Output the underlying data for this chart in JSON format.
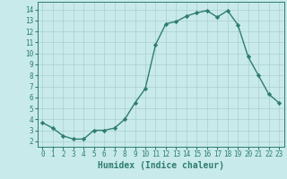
{
  "x": [
    0,
    1,
    2,
    3,
    4,
    5,
    6,
    7,
    8,
    9,
    10,
    11,
    12,
    13,
    14,
    15,
    16,
    17,
    18,
    19,
    20,
    21,
    22,
    23
  ],
  "y": [
    3.7,
    3.2,
    2.5,
    2.2,
    2.2,
    3.0,
    3.0,
    3.2,
    4.0,
    5.5,
    6.8,
    10.8,
    12.7,
    12.9,
    13.4,
    13.7,
    13.9,
    13.3,
    13.9,
    12.6,
    9.7,
    8.0,
    6.3,
    5.5
  ],
  "line_color": "#2e7d6e",
  "marker": "D",
  "markersize": 2.2,
  "linewidth": 1.0,
  "bg_color": "#c8eaea",
  "grid_color": "#aacece",
  "xlabel": "Humidex (Indice chaleur)",
  "tick_fontsize": 5.5,
  "xlabel_fontsize": 7.0,
  "ylim": [
    1.5,
    14.7
  ],
  "xlim": [
    -0.5,
    23.5
  ],
  "yticks": [
    2,
    3,
    4,
    5,
    6,
    7,
    8,
    9,
    10,
    11,
    12,
    13,
    14
  ],
  "xticks": [
    0,
    1,
    2,
    3,
    4,
    5,
    6,
    7,
    8,
    9,
    10,
    11,
    12,
    13,
    14,
    15,
    16,
    17,
    18,
    19,
    20,
    21,
    22,
    23
  ]
}
